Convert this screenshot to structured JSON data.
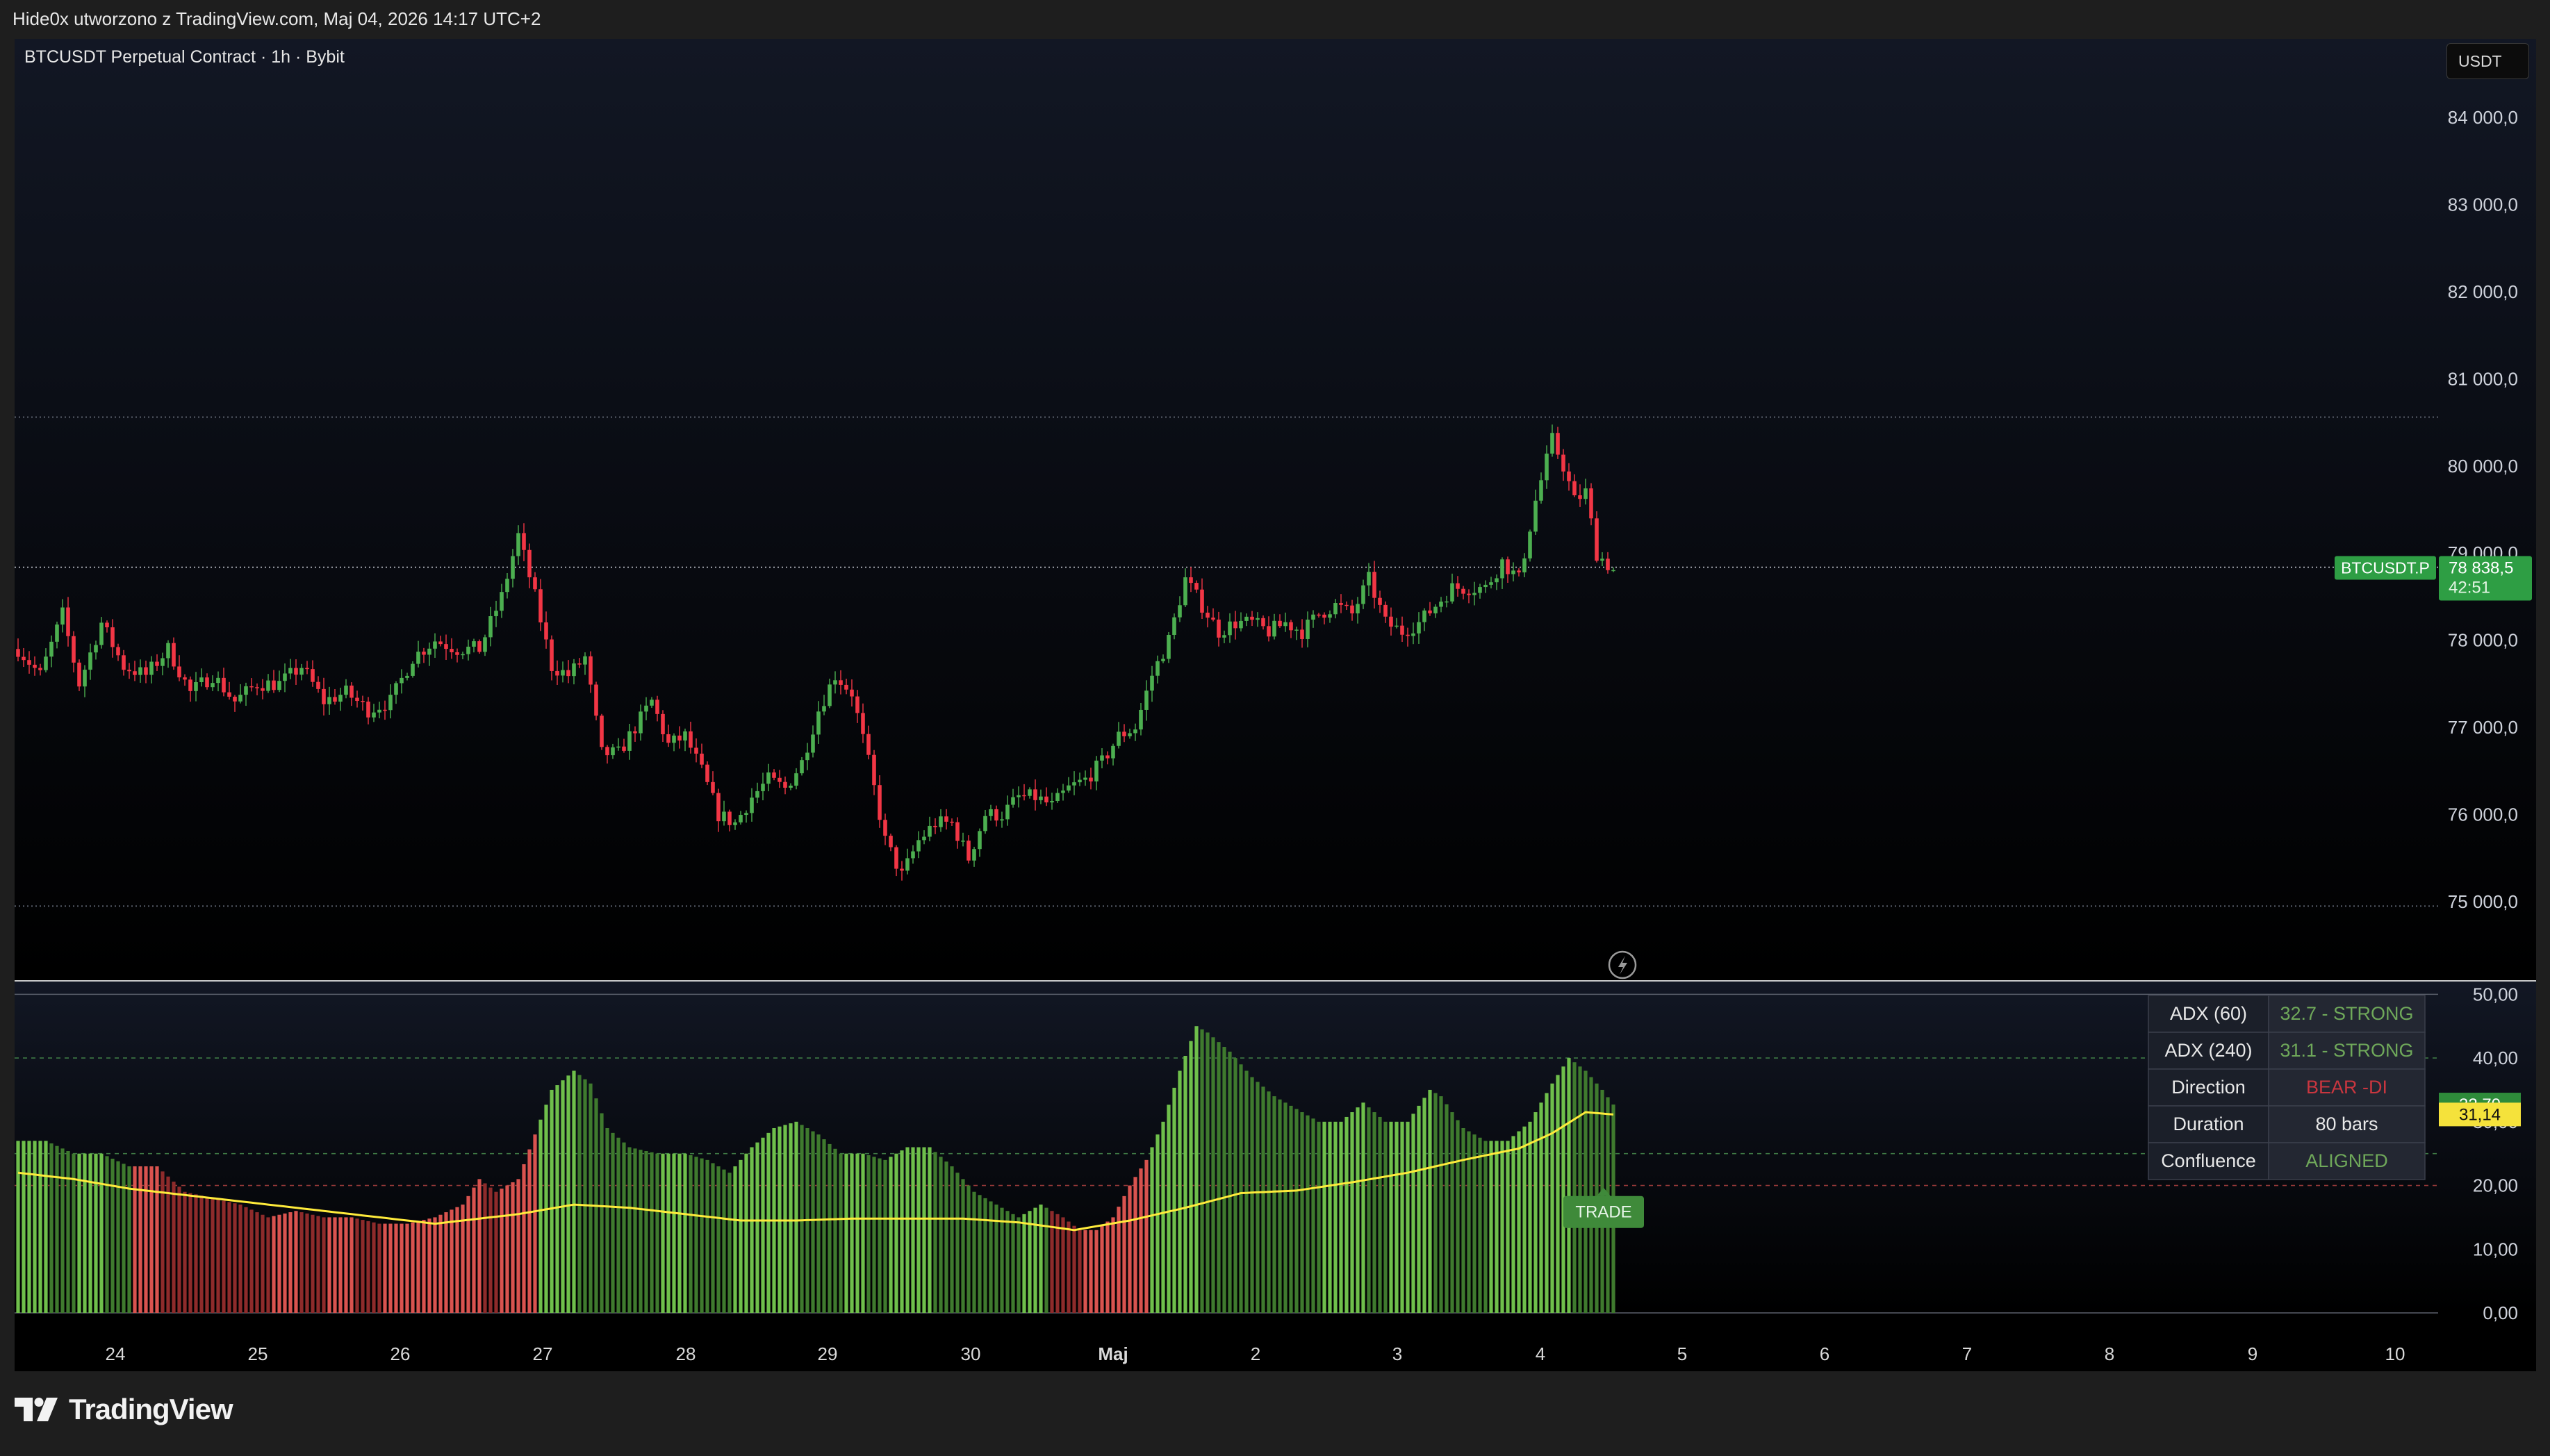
{
  "snapshot_caption": "Hide0x utworzono z TradingView.com, Maj 04, 2026 14:17 UTC+2",
  "symbol_title": "BTCUSDT Perpetual Contract · 1h · Bybit",
  "currency_button": "USDT",
  "brand": "TradingView",
  "symbol_tag": "BTCUSDT.P",
  "price_tag": "78 838,5",
  "countdown": "42:51",
  "price_axis_ticks": [
    "84 000,0",
    "83 000,0",
    "82 000,0",
    "81 000,0",
    "80 000,0",
    "79 000,0",
    "78 000,0",
    "77 000,0",
    "76 000,0",
    "75 000,0"
  ],
  "adx_axis_ticks": [
    "50,00",
    "40,00",
    "30,00",
    "20,00",
    "10,00",
    "0,00"
  ],
  "x_axis_ticks": [
    "24",
    "25",
    "26",
    "27",
    "28",
    "29",
    "30",
    "Maj",
    "2",
    "3",
    "4",
    "5",
    "6",
    "7",
    "8",
    "9",
    "10"
  ],
  "adx_last_value": "32,70",
  "signal_last_value": "31,14",
  "trade_label": "TRADE",
  "icons": {
    "lightning": "lightning-icon"
  },
  "colors": {
    "up": "#4caf50",
    "down": "#f23645",
    "signal": "#ffeb3b",
    "adx_strong": "#6fbf4b",
    "adx_bear": "#d9534f"
  },
  "adx_table": [
    {
      "label": "ADX (60)",
      "value": "32.7 - STRONG",
      "color": "#6fa85a"
    },
    {
      "label": "ADX (240)",
      "value": "31.1 - STRONG",
      "color": "#6fa85a"
    },
    {
      "label": "Direction",
      "value": "BEAR -DI",
      "color": "#c9363f"
    },
    {
      "label": "Duration",
      "value": "80 bars",
      "color": "#e8e8e8"
    },
    {
      "label": "Confluence",
      "value": "ALIGNED",
      "color": "#6fa85a"
    }
  ],
  "chart_data": [
    {
      "type": "candlestick",
      "title": "BTCUSDT Perpetual Contract · 1h · Bybit",
      "x_labels": [
        "24",
        "25",
        "26",
        "27",
        "28",
        "29",
        "30",
        "Maj",
        "2",
        "3",
        "4",
        "5",
        "6",
        "7",
        "8",
        "9",
        "10"
      ],
      "ylim": [
        74100,
        84900
      ],
      "horizontal_levels": [
        80560,
        74950
      ],
      "last_price": 78838.5,
      "close_path": [
        [
          0,
          77900
        ],
        [
          4,
          77600
        ],
        [
          8,
          78300
        ],
        [
          11,
          77500
        ],
        [
          15,
          78200
        ],
        [
          19,
          77700
        ],
        [
          23,
          77600
        ],
        [
          27,
          77900
        ],
        [
          31,
          77400
        ],
        [
          35,
          77600
        ],
        [
          39,
          77300
        ],
        [
          43,
          77500
        ],
        [
          47,
          77500
        ],
        [
          51,
          77700
        ],
        [
          55,
          77300
        ],
        [
          59,
          77400
        ],
        [
          63,
          77200
        ],
        [
          67,
          77300
        ],
        [
          71,
          77800
        ],
        [
          75,
          78000
        ],
        [
          79,
          77900
        ],
        [
          83,
          77900
        ],
        [
          87,
          78500
        ],
        [
          90,
          79200
        ],
        [
          93,
          78500
        ],
        [
          96,
          77700
        ],
        [
          99,
          77600
        ],
        [
          102,
          77800
        ],
        [
          105,
          76700
        ],
        [
          108,
          76700
        ],
        [
          111,
          77000
        ],
        [
          114,
          77300
        ],
        [
          117,
          76800
        ],
        [
          120,
          76900
        ],
        [
          123,
          76500
        ],
        [
          126,
          76000
        ],
        [
          129,
          75900
        ],
        [
          132,
          76200
        ],
        [
          135,
          76400
        ],
        [
          138,
          76300
        ],
        [
          141,
          76600
        ],
        [
          144,
          77200
        ],
        [
          147,
          77600
        ],
        [
          150,
          77400
        ],
        [
          153,
          76600
        ],
        [
          156,
          75700
        ],
        [
          159,
          75300
        ],
        [
          162,
          75700
        ],
        [
          165,
          75900
        ],
        [
          168,
          75900
        ],
        [
          171,
          75500
        ],
        [
          174,
          76000
        ],
        [
          177,
          76000
        ],
        [
          180,
          76200
        ],
        [
          183,
          76200
        ],
        [
          186,
          76100
        ],
        [
          189,
          76300
        ],
        [
          192,
          76400
        ],
        [
          195,
          76600
        ],
        [
          198,
          76900
        ],
        [
          201,
          77000
        ],
        [
          204,
          77600
        ],
        [
          207,
          78000
        ],
        [
          210,
          78700
        ],
        [
          213,
          78400
        ],
        [
          216,
          78100
        ],
        [
          219,
          78200
        ],
        [
          222,
          78200
        ],
        [
          225,
          78100
        ],
        [
          228,
          78200
        ],
        [
          231,
          78100
        ],
        [
          234,
          78300
        ],
        [
          237,
          78400
        ],
        [
          240,
          78300
        ],
        [
          243,
          78700
        ],
        [
          246,
          78200
        ],
        [
          249,
          78100
        ],
        [
          252,
          78200
        ],
        [
          255,
          78400
        ],
        [
          258,
          78600
        ],
        [
          261,
          78600
        ],
        [
          264,
          78600
        ],
        [
          267,
          78900
        ],
        [
          270,
          78700
        ],
        [
          273,
          79600
        ],
        [
          276,
          80300
        ],
        [
          278,
          80000
        ],
        [
          280,
          79600
        ],
        [
          282,
          79700
        ],
        [
          284,
          79000
        ],
        [
          287,
          78800
        ]
      ],
      "candle_count": 288
    },
    {
      "type": "bar",
      "title": "ADX",
      "ylim": [
        0,
        52
      ],
      "levels": [
        40,
        25,
        20
      ],
      "adx_path": [
        [
          0,
          27
        ],
        [
          5,
          27
        ],
        [
          10,
          25
        ],
        [
          15,
          25
        ],
        [
          20,
          23
        ],
        [
          25,
          23
        ],
        [
          30,
          19
        ],
        [
          35,
          18
        ],
        [
          40,
          17
        ],
        [
          45,
          15
        ],
        [
          50,
          16
        ],
        [
          55,
          15
        ],
        [
          60,
          15
        ],
        [
          65,
          14
        ],
        [
          70,
          14
        ],
        [
          75,
          15
        ],
        [
          80,
          17
        ],
        [
          83,
          21
        ],
        [
          86,
          19
        ],
        [
          90,
          21
        ],
        [
          93,
          28
        ],
        [
          96,
          35
        ],
        [
          100,
          38
        ],
        [
          103,
          36
        ],
        [
          106,
          29
        ],
        [
          110,
          26
        ],
        [
          115,
          25
        ],
        [
          120,
          25
        ],
        [
          124,
          24
        ],
        [
          128,
          22
        ],
        [
          132,
          26
        ],
        [
          136,
          29
        ],
        [
          140,
          30
        ],
        [
          144,
          28
        ],
        [
          148,
          25
        ],
        [
          152,
          25
        ],
        [
          156,
          24
        ],
        [
          160,
          26
        ],
        [
          164,
          26
        ],
        [
          168,
          23
        ],
        [
          172,
          19
        ],
        [
          176,
          17
        ],
        [
          180,
          15
        ],
        [
          184,
          17
        ],
        [
          188,
          15
        ],
        [
          191,
          13
        ],
        [
          194,
          13
        ],
        [
          197,
          15
        ],
        [
          200,
          20
        ],
        [
          203,
          24
        ],
        [
          206,
          30
        ],
        [
          209,
          38
        ],
        [
          212,
          45
        ],
        [
          214,
          44
        ],
        [
          218,
          41
        ],
        [
          222,
          37
        ],
        [
          226,
          34
        ],
        [
          230,
          32
        ],
        [
          234,
          30
        ],
        [
          238,
          30
        ],
        [
          242,
          33
        ],
        [
          246,
          30
        ],
        [
          250,
          30
        ],
        [
          254,
          35
        ],
        [
          256,
          34
        ],
        [
          260,
          29
        ],
        [
          264,
          27
        ],
        [
          268,
          27
        ],
        [
          272,
          30
        ],
        [
          276,
          36
        ],
        [
          279,
          40
        ],
        [
          282,
          38
        ],
        [
          285,
          35
        ],
        [
          287,
          32.7
        ]
      ],
      "signal_path": [
        [
          0,
          22
        ],
        [
          10,
          21
        ],
        [
          20,
          19.5
        ],
        [
          30,
          18.5
        ],
        [
          40,
          17.5
        ],
        [
          50,
          16.5
        ],
        [
          60,
          15.5
        ],
        [
          70,
          14.5
        ],
        [
          75,
          14
        ],
        [
          80,
          14.5
        ],
        [
          90,
          15.5
        ],
        [
          100,
          17
        ],
        [
          110,
          16.5
        ],
        [
          120,
          15.5
        ],
        [
          130,
          14.5
        ],
        [
          140,
          14.5
        ],
        [
          150,
          14.8
        ],
        [
          160,
          14.8
        ],
        [
          170,
          14.8
        ],
        [
          180,
          14.2
        ],
        [
          190,
          13
        ],
        [
          200,
          14.5
        ],
        [
          210,
          16.5
        ],
        [
          220,
          18.8
        ],
        [
          230,
          19.2
        ],
        [
          240,
          20.5
        ],
        [
          250,
          22
        ],
        [
          260,
          24
        ],
        [
          270,
          25.8
        ],
        [
          276,
          28.2
        ],
        [
          282,
          31.5
        ],
        [
          287,
          31.14
        ]
      ],
      "red_ranges": [
        [
          21,
          93
        ],
        [
          186,
          203
        ]
      ],
      "last_adx": 32.7,
      "last_signal": 31.14
    }
  ]
}
